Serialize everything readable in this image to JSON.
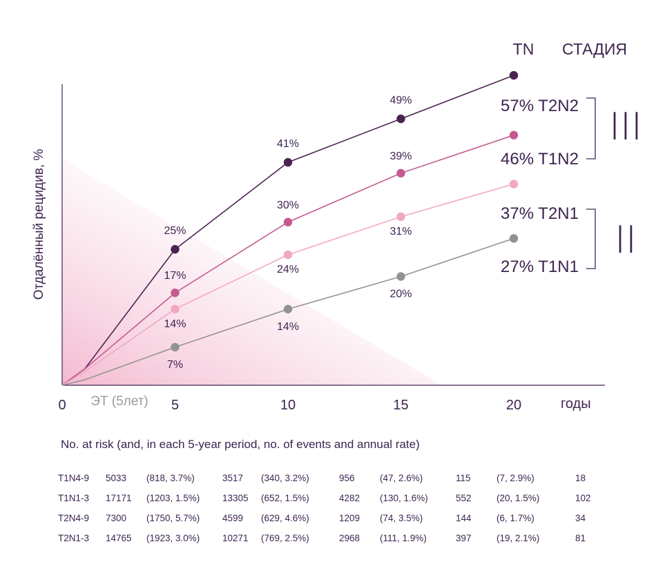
{
  "chart_data": {
    "type": "line",
    "ylabel": "Отдалённый рецидив, %",
    "xlabel": "годы",
    "x_ticks": [
      "0",
      "5",
      "10",
      "15",
      "20"
    ],
    "x": [
      0,
      1,
      5,
      10,
      15,
      20
    ],
    "ylim": [
      0,
      70
    ],
    "xlim": [
      0,
      24
    ],
    "et_label": "ЭТ (5лет)",
    "tn_header": "TN",
    "stage_header": "СТАДИЯ",
    "stages": [
      {
        "name": "III",
        "rows": [
          "T2N2",
          "T1N2"
        ]
      },
      {
        "name": "II",
        "rows": [
          "T2N1",
          "T1N1"
        ]
      }
    ],
    "series": [
      {
        "name": "T2N2",
        "color": "#4a2350",
        "values": [
          0,
          3,
          25,
          41,
          49,
          57
        ],
        "point_labels": [
          "25%",
          "41%",
          "49%"
        ],
        "end_label": "57% T2N2"
      },
      {
        "name": "T1N2",
        "color": "#c45a90",
        "values": [
          0,
          3,
          17,
          30,
          39,
          46
        ],
        "point_labels": [
          "17%",
          "30%",
          "39%"
        ],
        "end_label": "46% T1N2"
      },
      {
        "name": "T2N1",
        "color": "#f0a8c3",
        "values": [
          0,
          2.5,
          14,
          24,
          31,
          37
        ],
        "point_labels": [
          "14%",
          "24%",
          "31%"
        ],
        "end_label": "37% T2N1"
      },
      {
        "name": "T1N1",
        "color": "#929292",
        "values": [
          0,
          1,
          7,
          14,
          20,
          27
        ],
        "point_labels": [
          "7%",
          "14%",
          "20%"
        ],
        "end_label": "27% T1N1"
      }
    ]
  },
  "risk_table": {
    "title": "No. at risk (and, in each 5-year period, no. of events and annual rate)",
    "rows": [
      [
        "T1N4-9",
        "5033",
        "(818, 3.7%)",
        "3517",
        "(340, 3.2%)",
        "956",
        "(47, 2.6%)",
        "115",
        "(7, 2.9%)",
        "18"
      ],
      [
        "T1N1-3",
        "17171",
        "(1203, 1.5%)",
        "13305",
        "(652, 1.5%)",
        "4282",
        "(130, 1.6%)",
        "552",
        "(20, 1.5%)",
        "102"
      ],
      [
        "T2N4-9",
        "7300",
        "(1750, 5.7%)",
        "4599",
        "(629, 4.6%)",
        "1209",
        "(74, 3.5%)",
        "144",
        "(6, 1.7%)",
        "34"
      ],
      [
        "T2N1-3",
        "14765",
        "(1923, 3.0%)",
        "10271",
        "(769, 2.5%)",
        "2968",
        "(111, 1.9%)",
        "397",
        "(19, 2.1%)",
        "81"
      ]
    ]
  }
}
